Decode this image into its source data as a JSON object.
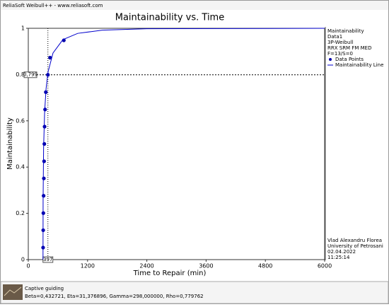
{
  "window_title": "ReliaSoft Weibull++ - www.reliasoft.com",
  "chart_data": {
    "type": "line",
    "title": "Maintainability vs. Time",
    "x_label": "Time to Repair (min)",
    "y_label": "Maintainability",
    "xlim": [
      0,
      6000
    ],
    "xticks": [
      0,
      1200,
      2400,
      3600,
      4800,
      6000
    ],
    "ylim": [
      0,
      1
    ],
    "yticks": [
      0,
      0.2,
      0.4,
      0.6,
      0.8,
      1
    ],
    "series": [
      {
        "name": "Data Points",
        "color": "#0000aa",
        "marker": true,
        "x": [
          300,
          302,
          305,
          310,
          315,
          320,
          325,
          330,
          340,
          355,
          397,
          440,
          720
        ],
        "values": [
          0.052,
          0.127,
          0.201,
          0.276,
          0.351,
          0.425,
          0.5,
          0.575,
          0.649,
          0.724,
          0.799,
          0.873,
          0.948
        ]
      },
      {
        "name": "Maintainability Line",
        "color": "#0000cc",
        "marker": false,
        "x": [
          298,
          300,
          310,
          330,
          360,
          400,
          500,
          700,
          1000,
          1500,
          2400,
          6000
        ],
        "values": [
          0,
          0.262,
          0.483,
          0.635,
          0.739,
          0.811,
          0.893,
          0.951,
          0.978,
          0.992,
          0.998,
          1
        ]
      }
    ],
    "reference": {
      "y": {
        "value": 0.799,
        "label": "0,799"
      },
      "x": {
        "value": 397,
        "label": "397"
      }
    }
  },
  "legend_header": [
    "Maintainability",
    "Data1",
    "3P-Weibull",
    "RRX SRM FM MED",
    "F=13/S=0"
  ],
  "author": [
    "Vlad Alexandru Florea",
    "University of Petrosani",
    "02.04.2022",
    "11:25:14"
  ],
  "status": {
    "title": "Captive guiding",
    "params": "Beta=0,432721, Eta=31,376896, Gamma=298,000000, Rho=0,779762"
  }
}
